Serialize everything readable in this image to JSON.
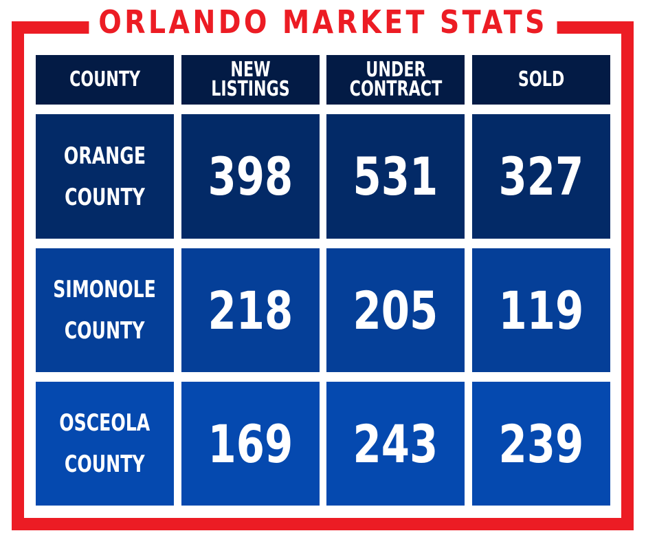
{
  "title": "ORLANDO MARKET STATS",
  "colors": {
    "border": "#ec1c24",
    "title": "#ec1c24",
    "header_bg": "#031b45",
    "row1_bg": "#032a67",
    "row2_bg": "#053f98",
    "row3_bg": "#0549af",
    "text": "#ffffff"
  },
  "table": {
    "headers": [
      "COUNTY",
      "NEW LISTINGS",
      "UNDER\nCONTRACT",
      "SOLD"
    ],
    "rows": [
      {
        "county": "ORANGE\nCOUNTY",
        "new_listings": "398",
        "under_contract": "531",
        "sold": "327"
      },
      {
        "county": "SIMONOLE\nCOUNTY",
        "new_listings": "218",
        "under_contract": "205",
        "sold": "119"
      },
      {
        "county": "OSCEOLA\nCOUNTY",
        "new_listings": "169",
        "under_contract": "243",
        "sold": "239"
      }
    ]
  }
}
